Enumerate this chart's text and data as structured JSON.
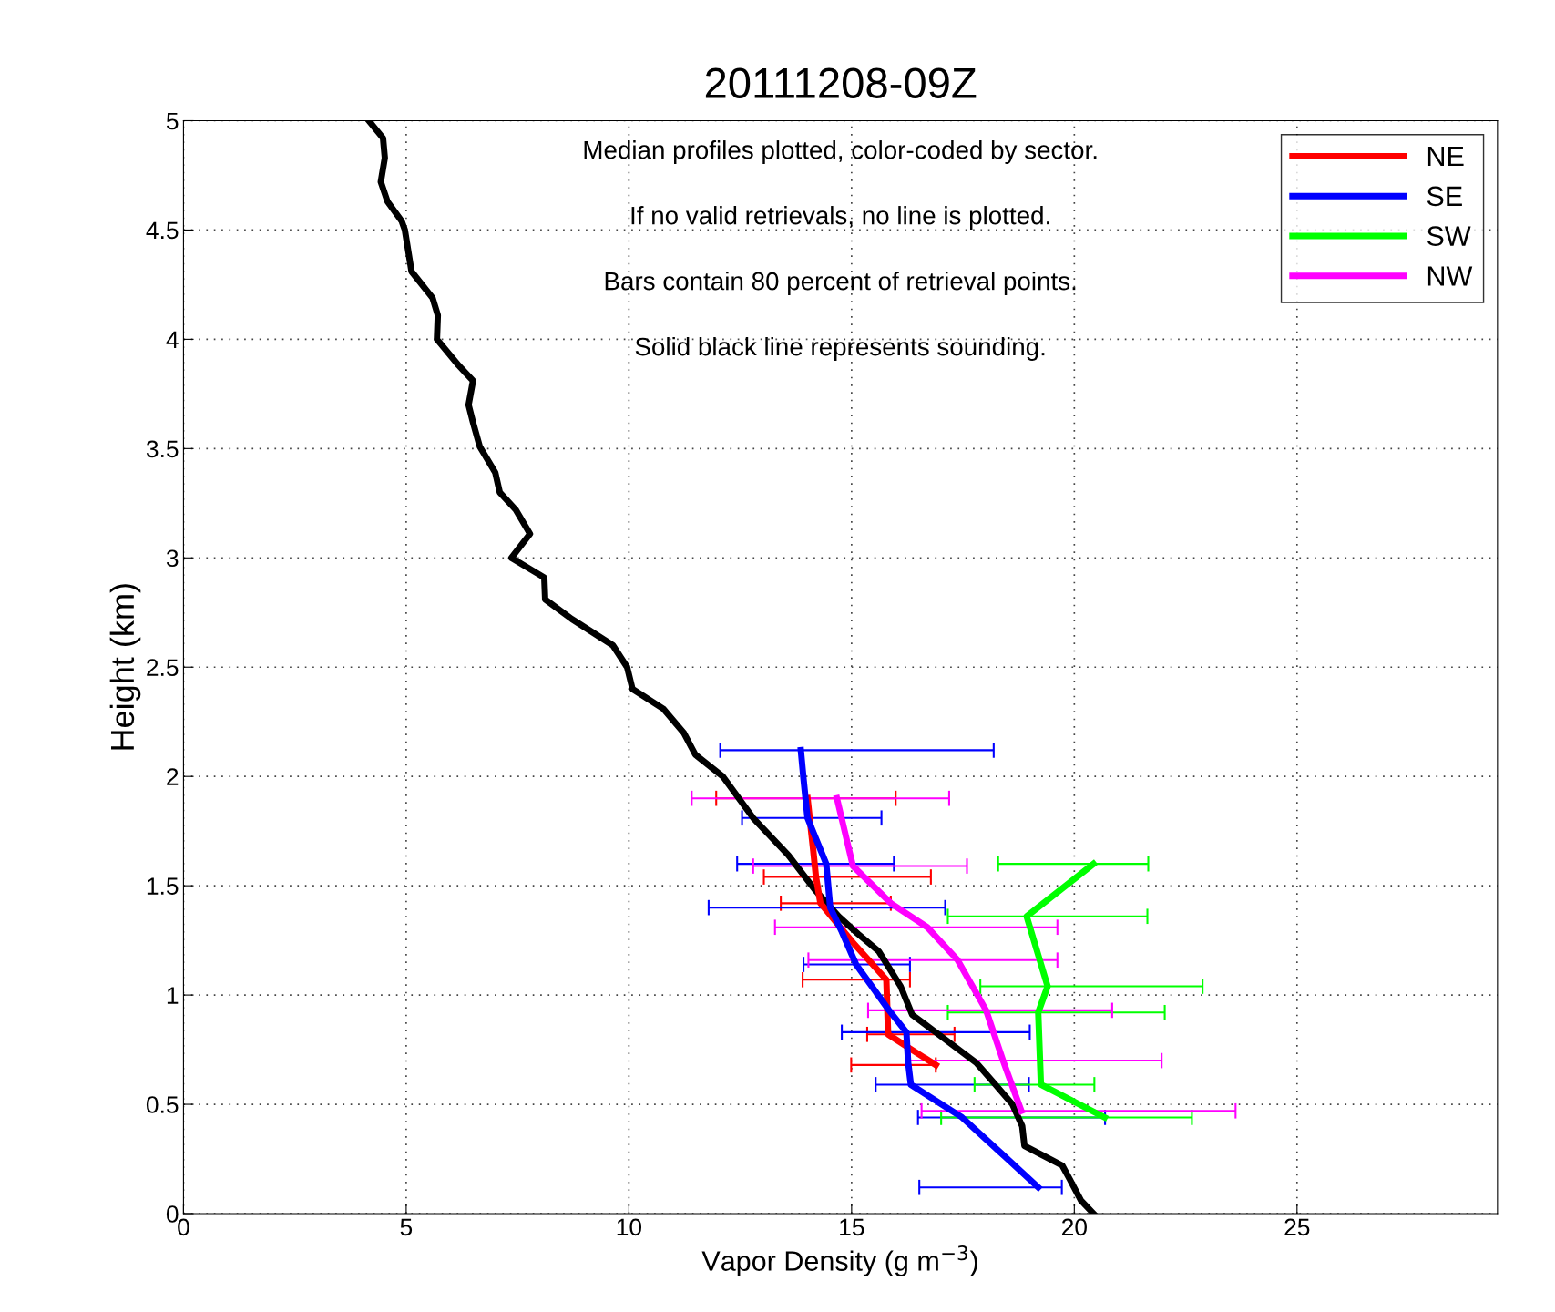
{
  "chart_data": {
    "type": "line",
    "title": "20111208-09Z",
    "xlabel": "Vapor Density (g m$^{−3}$)",
    "ylabel": "Height (km)",
    "annotations": [
      "Median profiles plotted, color-coded by sector.",
      "If no valid retrievals, no line is plotted.",
      "Bars contain 80 percent of retrieval points.",
      "Solid black line represents sounding."
    ],
    "xlim": [
      0,
      29.5
    ],
    "xticks": [
      0,
      5,
      10,
      15,
      20,
      25
    ],
    "ylim": [
      0,
      5
    ],
    "yticks": [
      0,
      0.5,
      1,
      1.5,
      2,
      2.5,
      3,
      3.5,
      4,
      4.5,
      5
    ],
    "grid": true,
    "legend": "top right",
    "marker": "none",
    "line_style": "solid",
    "series": [
      {
        "color": "#000000",
        "x": [
          4.16,
          4.48,
          4.52,
          4.43,
          4.58,
          4.9,
          4.97,
          5.12,
          5.59,
          5.71,
          5.69,
          6.18,
          6.5,
          6.4,
          6.5,
          6.65,
          7.0,
          7.1,
          7.46,
          7.78,
          7.36,
          8.1,
          8.12,
          8.72,
          9.64,
          9.96,
          10.08,
          10.77,
          11.23,
          11.49,
          12.11,
          12.79,
          13.58,
          14.18,
          14.71,
          15.14,
          15.61,
          16.1,
          16.36,
          16.95,
          17.8,
          18.23,
          18.61,
          18.83,
          18.88,
          19.73,
          19.89,
          20.15,
          20.43
        ],
        "values": [
          5.0,
          4.92,
          4.83,
          4.72,
          4.63,
          4.54,
          4.5,
          4.31,
          4.19,
          4.11,
          4.0,
          3.88,
          3.81,
          3.7,
          3.62,
          3.51,
          3.39,
          3.3,
          3.22,
          3.11,
          3.0,
          2.91,
          2.81,
          2.72,
          2.6,
          2.5,
          2.4,
          2.31,
          2.2,
          2.1,
          2.0,
          1.81,
          1.64,
          1.48,
          1.36,
          1.28,
          1.2,
          1.04,
          0.91,
          0.82,
          0.69,
          0.59,
          0.5,
          0.4,
          0.31,
          0.22,
          0.16,
          0.06,
          0.0
        ]
      },
      {
        "name": "NE",
        "color": "#ff0000",
        "x": [
          14.01,
          14.14,
          14.2,
          14.3,
          15.03,
          15.78,
          15.82,
          16.27,
          16.89
        ],
        "values": [
          1.9,
          1.66,
          1.54,
          1.42,
          1.24,
          1.07,
          0.82,
          0.76,
          0.68
        ],
        "xerrors": [
          [
            11.96,
            15.99
          ],
          null,
          [
            13.03,
            16.78
          ],
          [
            13.41,
            15.88
          ],
          null,
          [
            13.9,
            16.31
          ],
          [
            15.35,
            17.31
          ],
          null,
          [
            14.99,
            16.89
          ]
        ]
      },
      {
        "name": "SE",
        "color": "#0000ff",
        "x": [
          13.86,
          13.92,
          14.01,
          14.43,
          14.52,
          14.78,
          15.1,
          15.84,
          16.23,
          16.27,
          16.33,
          17.48,
          18.34,
          19.19
        ],
        "values": [
          2.12,
          1.99,
          1.81,
          1.6,
          1.4,
          1.29,
          1.14,
          0.93,
          0.83,
          0.69,
          0.59,
          0.44,
          0.28,
          0.12
        ],
        "xerrors": [
          [
            12.05,
            18.19
          ],
          null,
          [
            12.54,
            15.67
          ],
          [
            12.43,
            15.95
          ],
          [
            11.79,
            17.1
          ],
          null,
          [
            13.92,
            16.31
          ],
          null,
          [
            14.78,
            19.0
          ],
          null,
          [
            15.54,
            18.98
          ],
          [
            16.49,
            20.69
          ],
          null,
          [
            16.52,
            19.72
          ]
        ]
      },
      {
        "name": "SW",
        "color": "#00ff00",
        "x": [
          20.43,
          18.93,
          19.4,
          19.19,
          19.25,
          20.68
        ],
        "values": [
          1.6,
          1.36,
          1.04,
          0.92,
          0.59,
          0.44
        ],
        "xerrors": [
          [
            18.29,
            21.66
          ],
          [
            17.16,
            21.64
          ],
          [
            17.89,
            22.88
          ],
          [
            17.16,
            22.03
          ],
          [
            17.76,
            20.45
          ],
          [
            17.01,
            22.64
          ]
        ]
      },
      {
        "name": "NW",
        "color": "#ff00ff",
        "x": [
          14.67,
          15.03,
          15.88,
          16.7,
          17.38,
          18.02,
          18.4,
          18.81
        ],
        "values": [
          1.9,
          1.59,
          1.42,
          1.31,
          1.16,
          0.93,
          0.7,
          0.47
        ],
        "xerrors": [
          [
            11.41,
            17.19
          ],
          [
            12.79,
            17.59
          ],
          null,
          [
            13.28,
            19.62
          ],
          [
            14.03,
            19.62
          ],
          [
            15.37,
            20.85
          ],
          [
            16.31,
            21.96
          ],
          [
            16.57,
            23.62
          ]
        ]
      }
    ]
  }
}
